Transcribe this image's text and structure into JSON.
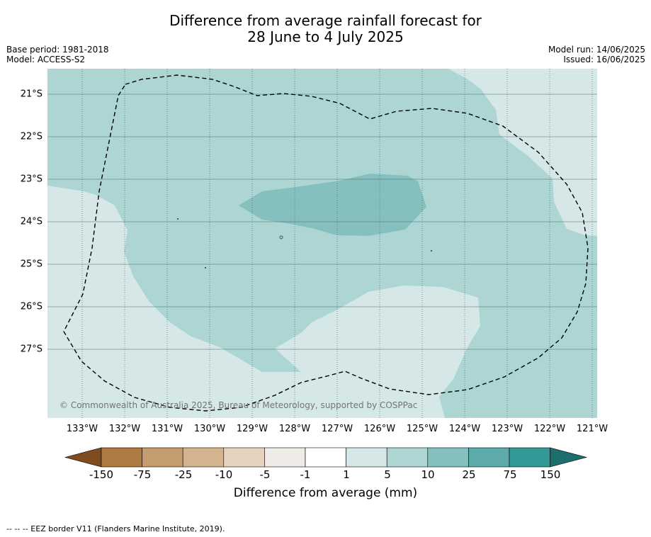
{
  "title": {
    "line1": "Difference from average rainfall forecast for",
    "line2": "28 June to 4 July 2025"
  },
  "meta": {
    "base_period": "Base period: 1981-2018",
    "model": "Model: ACCESS-S2",
    "model_run": "Model run: 14/06/2025",
    "issued": "Issued: 16/06/2025"
  },
  "map": {
    "copyright": "© Commonwealth of Australia 2025, Bureau of Meteorology, supported by COSPPac",
    "lat_labels": [
      "21°S",
      "22°S",
      "23°S",
      "24°S",
      "25°S",
      "26°S",
      "27°S"
    ],
    "lon_labels": [
      "133°W",
      "132°W",
      "131°W",
      "130°W",
      "129°W",
      "128°W",
      "127°W",
      "126°W",
      "125°W",
      "124°W",
      "123°W",
      "122°W",
      "121°W"
    ],
    "category_colors": {
      "1_to_5": "#d5e8e7",
      "5_to_10": "#acd5d4",
      "10_to_25": "#85c0bf",
      "land_gray_lines": "#7a8a8a"
    }
  },
  "colorbar": {
    "ticks": [
      "-150",
      "-75",
      "-25",
      "-10",
      "-5",
      "-1",
      "1",
      "5",
      "10",
      "25",
      "75",
      "150"
    ],
    "colors": [
      "#7f4b1f",
      "#ad7a42",
      "#c49c6f",
      "#d4b38f",
      "#e5d3c0",
      "#efebe6",
      "#ffffff",
      "#d5e8e7",
      "#acd5d4",
      "#85c0bf",
      "#5cabaa",
      "#339896",
      "#1d6e6d"
    ],
    "label": "Difference from average (mm)"
  },
  "footnote": "--  --  -- EEZ border V11 (Flanders Marine Institute, 2019)."
}
